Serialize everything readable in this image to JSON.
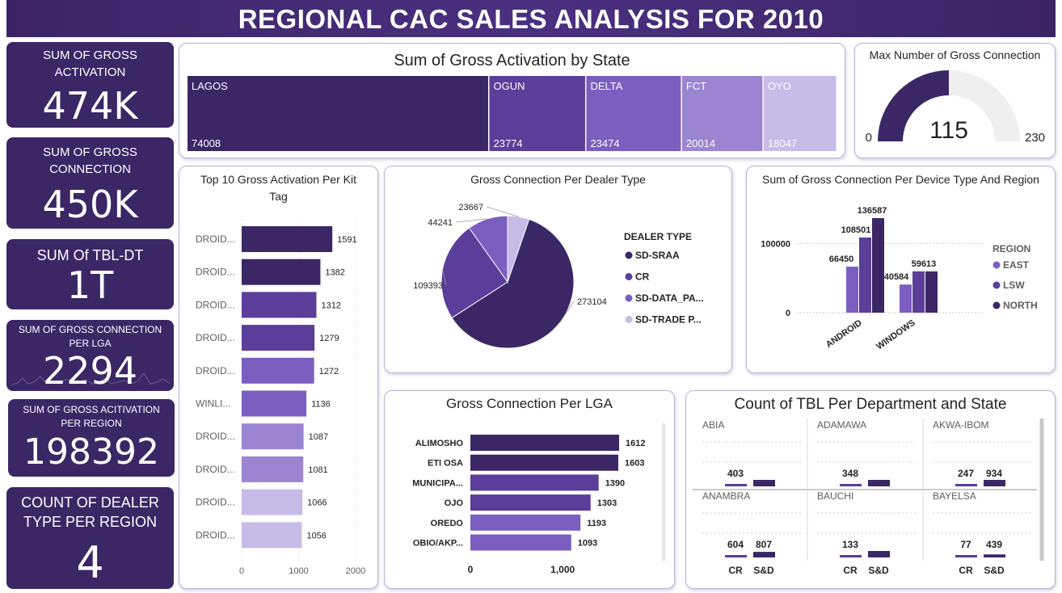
{
  "header": {
    "title": "REGIONAL CAC SALES ANALYSIS FOR 2010"
  },
  "kpis": [
    {
      "label": "SUM OF GROSS ACTIVATION",
      "value": "474K"
    },
    {
      "label": "SUM OF GROSS CONNECTION",
      "value": "450K"
    },
    {
      "label": "SUM Of TBL-DT",
      "value": "1T"
    },
    {
      "label": "SUM OF GROSS CONNECTION PER LGA",
      "value": "2294"
    },
    {
      "label": "SUM OF GROSS ACITIVATION PER REGION",
      "value": "198392"
    },
    {
      "label": "COUNT OF DEALER TYPE PER REGION",
      "value": "4"
    }
  ],
  "colors": {
    "dark": "#3b2766",
    "c2": "#5b3d9a",
    "c3": "#7a5fc0",
    "c4": "#9b85d3",
    "c5": "#c7bbe8",
    "header": "#3b2466"
  },
  "chart_data": [
    {
      "type": "treemap",
      "title": "Sum of Gross Activation by State",
      "categories": [
        "LAGOS",
        "OGUN",
        "DELTA",
        "FCT",
        "OYO"
      ],
      "values": [
        74008,
        23774,
        23474,
        20014,
        18047
      ]
    },
    {
      "type": "gauge",
      "title": "Max Number of Gross Connection",
      "value": 115,
      "min": 0,
      "max": 230
    },
    {
      "type": "bar",
      "orientation": "horizontal",
      "title": "Top 10 Gross Activation Per Kit Tag",
      "categories": [
        "DROID...",
        "DROID...",
        "DROID...",
        "DROID...",
        "DROID...",
        "WINLI...",
        "DROID...",
        "DROID...",
        "DROID...",
        "DROID..."
      ],
      "values": [
        1591,
        1382,
        1312,
        1279,
        1272,
        1136,
        1087,
        1081,
        1066,
        1056
      ],
      "xlim": [
        0,
        2000
      ],
      "xticks": [
        "0",
        "1000",
        "2000"
      ]
    },
    {
      "type": "pie",
      "title": "Gross Connection Per Dealer Type",
      "legend_title": "DEALER TYPE",
      "categories": [
        "SD-SRAA",
        "CR",
        "SD-DATA_PA...",
        "SD-TRADE P..."
      ],
      "values": [
        273104,
        109393,
        44241,
        23667
      ],
      "labels": [
        "273104",
        "109393",
        "44241",
        "23667"
      ]
    },
    {
      "type": "bar",
      "title": "Sum of Gross Connection Per Device Type And Region",
      "legend_title": "REGION",
      "categories": [
        "ANDROID",
        "WINDOWS"
      ],
      "series": [
        {
          "name": "EAST",
          "values": [
            66450,
            40584
          ]
        },
        {
          "name": "LSW",
          "values": [
            108501,
            59613
          ]
        },
        {
          "name": "NORTH",
          "values": [
            136587,
            59613
          ]
        }
      ],
      "data_labels": [
        [
          "66450",
          "108501",
          "136587"
        ],
        [
          "40584",
          "59613",
          ""
        ]
      ],
      "yticks": [
        "0",
        "100000"
      ],
      "ylim": [
        0,
        140000
      ]
    },
    {
      "type": "bar",
      "orientation": "horizontal",
      "title": "Gross Connection Per LGA",
      "categories": [
        "ALIMOSHO",
        "ETI OSA",
        "MUNICIPA...",
        "OJO",
        "OREDO",
        "OBIO/AKP..."
      ],
      "values": [
        1612,
        1603,
        1390,
        1303,
        1193,
        1093
      ],
      "xlim": [
        0,
        1800
      ],
      "xticks": [
        "0",
        "1,000"
      ]
    },
    {
      "type": "bar",
      "title": "Count of TBL Per Department and State",
      "categories": [
        "CR",
        "S&D"
      ],
      "panels": [
        {
          "state": "ABIA",
          "values": [
            403,
            0
          ],
          "labels": [
            "403",
            ""
          ]
        },
        {
          "state": "ADAMAWA",
          "values": [
            348,
            0
          ],
          "labels": [
            "348",
            ""
          ]
        },
        {
          "state": "AKWA-IBOM",
          "values": [
            247,
            934
          ],
          "labels": [
            "247",
            "934"
          ]
        },
        {
          "state": "ANAMBRA",
          "values": [
            604,
            807
          ],
          "labels": [
            "604",
            "807"
          ]
        },
        {
          "state": "BAUCHI",
          "values": [
            133,
            0
          ],
          "labels": [
            "133",
            ""
          ]
        },
        {
          "state": "BAYELSA",
          "values": [
            77,
            439
          ],
          "labels": [
            "77",
            "439"
          ]
        }
      ]
    }
  ]
}
